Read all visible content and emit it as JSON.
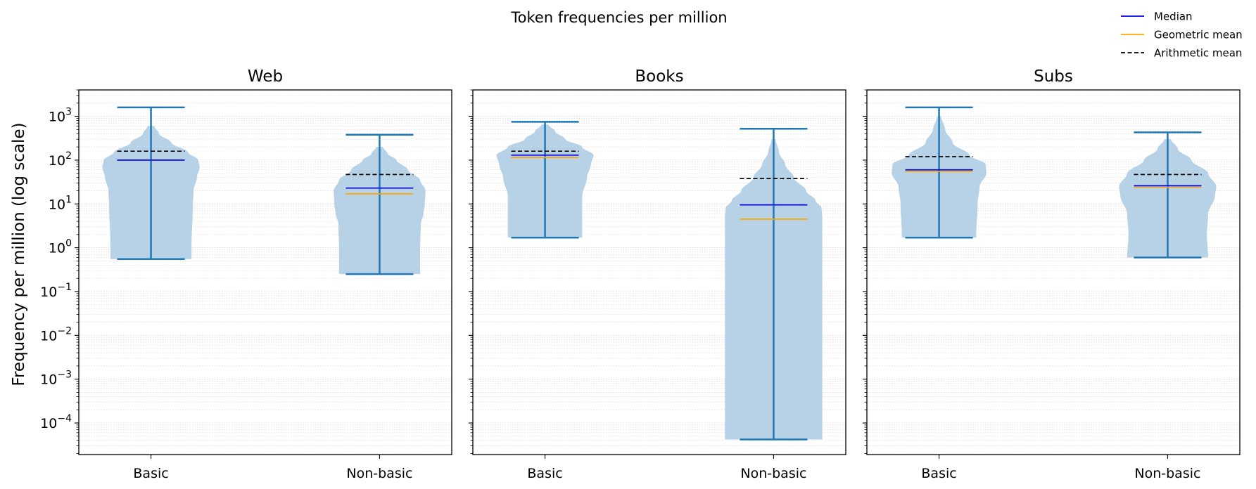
{
  "chart_data": {
    "type": "violin",
    "title": "Token frequencies per million",
    "ylabel": "Frequency per million (log scale)",
    "yscale": "log",
    "ylim": [
      1.9e-05,
      4000
    ],
    "ytick_exponents": [
      -4,
      -3,
      -2,
      -1,
      0,
      1,
      2,
      3
    ],
    "grid": "on (major and minor, dotted, y-axis)",
    "legend_placement": "top-right",
    "categories": [
      "Basic",
      "Non-basic"
    ],
    "legend": [
      {
        "label": "Median",
        "color": "#0000ee",
        "style": "solid"
      },
      {
        "label": "Geometric mean",
        "color": "#ffa500",
        "style": "solid"
      },
      {
        "label": "Arithmetic mean",
        "color": "#000000",
        "style": "dashed"
      }
    ],
    "panels": [
      {
        "name": "Web",
        "groups": [
          {
            "category": "Basic",
            "min": 0.55,
            "max": 1600,
            "median": 100,
            "geometric_mean": 100,
            "arithmetic_mean": 160,
            "density": [
              [
                0.55,
                0.6
              ],
              [
                1.0,
                0.6
              ],
              [
                10,
                0.62
              ],
              [
                20,
                0.63
              ],
              [
                40,
                0.68
              ],
              [
                70,
                0.72
              ],
              [
                100,
                0.7
              ],
              [
                150,
                0.55
              ],
              [
                250,
                0.3
              ],
              [
                400,
                0.12
              ],
              [
                600,
                0.05
              ]
            ]
          },
          {
            "category": "Non-basic",
            "min": 0.25,
            "max": 380,
            "median": 23,
            "geometric_mean": 17,
            "arithmetic_mean": 47,
            "density": [
              [
                0.25,
                0.6
              ],
              [
                1.0,
                0.6
              ],
              [
                3.5,
                0.61
              ],
              [
                6,
                0.65
              ],
              [
                10,
                0.67
              ],
              [
                20,
                0.68
              ],
              [
                35,
                0.6
              ],
              [
                60,
                0.42
              ],
              [
                100,
                0.25
              ],
              [
                140,
                0.12
              ],
              [
                200,
                0.05
              ]
            ]
          }
        ]
      },
      {
        "name": "Books",
        "groups": [
          {
            "category": "Basic",
            "min": 1.7,
            "max": 750,
            "median": 130,
            "geometric_mean": 115,
            "arithmetic_mean": 160,
            "density": [
              [
                1.7,
                0.55
              ],
              [
                15,
                0.55
              ],
              [
                40,
                0.62
              ],
              [
                80,
                0.68
              ],
              [
                130,
                0.72
              ],
              [
                200,
                0.55
              ],
              [
                300,
                0.3
              ],
              [
                450,
                0.15
              ],
              [
                650,
                0.05
              ]
            ]
          },
          {
            "category": "Non-basic",
            "min": 4.2e-05,
            "max": 520,
            "median": 9.5,
            "geometric_mean": 4.5,
            "arithmetic_mean": 38,
            "density": [
              [
                4.2e-05,
                0.72
              ],
              [
                1.0,
                0.72
              ],
              [
                5,
                0.72
              ],
              [
                8,
                0.71
              ],
              [
                12,
                0.62
              ],
              [
                20,
                0.48
              ],
              [
                40,
                0.3
              ],
              [
                80,
                0.17
              ],
              [
                150,
                0.08
              ],
              [
                300,
                0.03
              ]
            ]
          }
        ]
      },
      {
        "name": "Subs",
        "groups": [
          {
            "category": "Basic",
            "min": 1.7,
            "max": 1600,
            "median": 60,
            "geometric_mean": 55,
            "arithmetic_mean": 120,
            "density": [
              [
                1.7,
                0.55
              ],
              [
                10,
                0.57
              ],
              [
                25,
                0.6
              ],
              [
                50,
                0.7
              ],
              [
                80,
                0.69
              ],
              [
                130,
                0.45
              ],
              [
                250,
                0.2
              ],
              [
                500,
                0.09
              ],
              [
                1000,
                0.03
              ]
            ]
          },
          {
            "category": "Non-basic",
            "min": 0.6,
            "max": 430,
            "median": 26,
            "geometric_mean": 24,
            "arithmetic_mean": 47,
            "density": [
              [
                0.6,
                0.6
              ],
              [
                2,
                0.58
              ],
              [
                6,
                0.6
              ],
              [
                15,
                0.7
              ],
              [
                25,
                0.72
              ],
              [
                50,
                0.6
              ],
              [
                100,
                0.35
              ],
              [
                180,
                0.15
              ],
              [
                300,
                0.05
              ]
            ]
          }
        ]
      }
    ]
  },
  "colors": {
    "violin_fill": "#b7d2e6",
    "violin_line": "#1f77b4",
    "median": "#0000ee",
    "geometric_mean": "#ffa500",
    "arithmetic_mean": "#000000",
    "grid": "#d9d9d9"
  }
}
